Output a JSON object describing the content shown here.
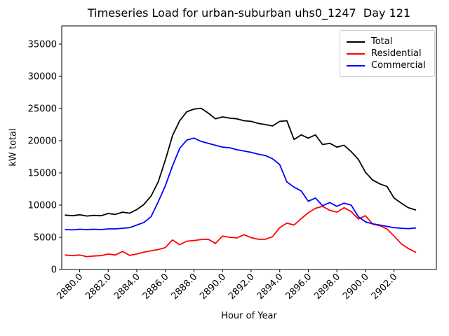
{
  "chart_data": {
    "type": "line",
    "title": "Timeseries Load for urban-suburban uhs0_1247  Day 121",
    "xlabel": "Hour of Year",
    "ylabel": "kW total",
    "xlim": [
      2878.75,
      2904.96
    ],
    "ylim": [
      0,
      37830
    ],
    "grid": false,
    "legend_position": "upper right",
    "xtick_values": [
      2880,
      2882,
      2884,
      2886,
      2888,
      2890,
      2892,
      2894,
      2896,
      2898,
      2900,
      2902
    ],
    "xtick_labels": [
      "2880.0",
      "2882.0",
      "2884.0",
      "2886.0",
      "2888.0",
      "2890.0",
      "2892.0",
      "2894.0",
      "2896.0",
      "2898.0",
      "2900.0",
      "2902.0"
    ],
    "ytick_values": [
      0,
      5000,
      10000,
      15000,
      20000,
      25000,
      30000,
      35000
    ],
    "ytick_labels": [
      "0",
      "5000",
      "10000",
      "15000",
      "20000",
      "25000",
      "30000",
      "35000"
    ],
    "x": [
      2879.0,
      2879.5,
      2880.0,
      2880.5,
      2881.0,
      2881.5,
      2882.0,
      2882.5,
      2883.0,
      2883.5,
      2884.0,
      2884.5,
      2885.0,
      2885.5,
      2886.0,
      2886.5,
      2887.0,
      2887.5,
      2888.0,
      2888.5,
      2889.0,
      2889.5,
      2890.0,
      2890.5,
      2891.0,
      2891.5,
      2892.0,
      2892.5,
      2893.0,
      2893.5,
      2894.0,
      2894.5,
      2895.0,
      2895.5,
      2896.0,
      2896.5,
      2897.0,
      2897.5,
      2898.0,
      2898.5,
      2899.0,
      2899.5,
      2900.0,
      2900.5,
      2901.0,
      2901.5,
      2902.0,
      2902.5,
      2903.0,
      2903.5
    ],
    "series": [
      {
        "name": "Total",
        "color": "#000000",
        "values": [
          8450,
          8350,
          8500,
          8300,
          8400,
          8350,
          8700,
          8550,
          8900,
          8750,
          9300,
          10100,
          11400,
          13600,
          17000,
          20800,
          23100,
          24500,
          24900,
          25050,
          24300,
          23400,
          23700,
          23500,
          23400,
          23100,
          23000,
          22700,
          22500,
          22300,
          23000,
          23100,
          20200,
          20900,
          20400,
          20900,
          19400,
          19600,
          19000,
          19300,
          18300,
          17100,
          15100,
          13900,
          13300,
          12900,
          11100,
          10300,
          9600,
          9250
        ]
      },
      {
        "name": "Residential",
        "color": "#ff0000",
        "values": [
          2250,
          2150,
          2250,
          2000,
          2100,
          2150,
          2400,
          2250,
          2800,
          2200,
          2400,
          2700,
          2900,
          3100,
          3400,
          4600,
          3850,
          4400,
          4500,
          4650,
          4700,
          4050,
          5200,
          5000,
          4900,
          5400,
          4950,
          4700,
          4700,
          5100,
          6500,
          7200,
          6900,
          7900,
          8800,
          9500,
          9800,
          9200,
          8900,
          9600,
          9000,
          7850,
          8350,
          7050,
          6800,
          6300,
          5200,
          4000,
          3250,
          2700
        ]
      },
      {
        "name": "Commercial",
        "color": "#0000ff",
        "values": [
          6200,
          6150,
          6250,
          6200,
          6250,
          6200,
          6300,
          6300,
          6400,
          6500,
          6900,
          7300,
          8200,
          10500,
          13000,
          16100,
          18800,
          20100,
          20400,
          19900,
          19600,
          19300,
          19000,
          18900,
          18600,
          18400,
          18200,
          17900,
          17700,
          17200,
          16300,
          13600,
          12800,
          12200,
          10600,
          11100,
          9900,
          10400,
          9800,
          10300,
          10000,
          8200,
          7400,
          7100,
          6900,
          6700,
          6500,
          6400,
          6350,
          6450
        ]
      }
    ]
  }
}
